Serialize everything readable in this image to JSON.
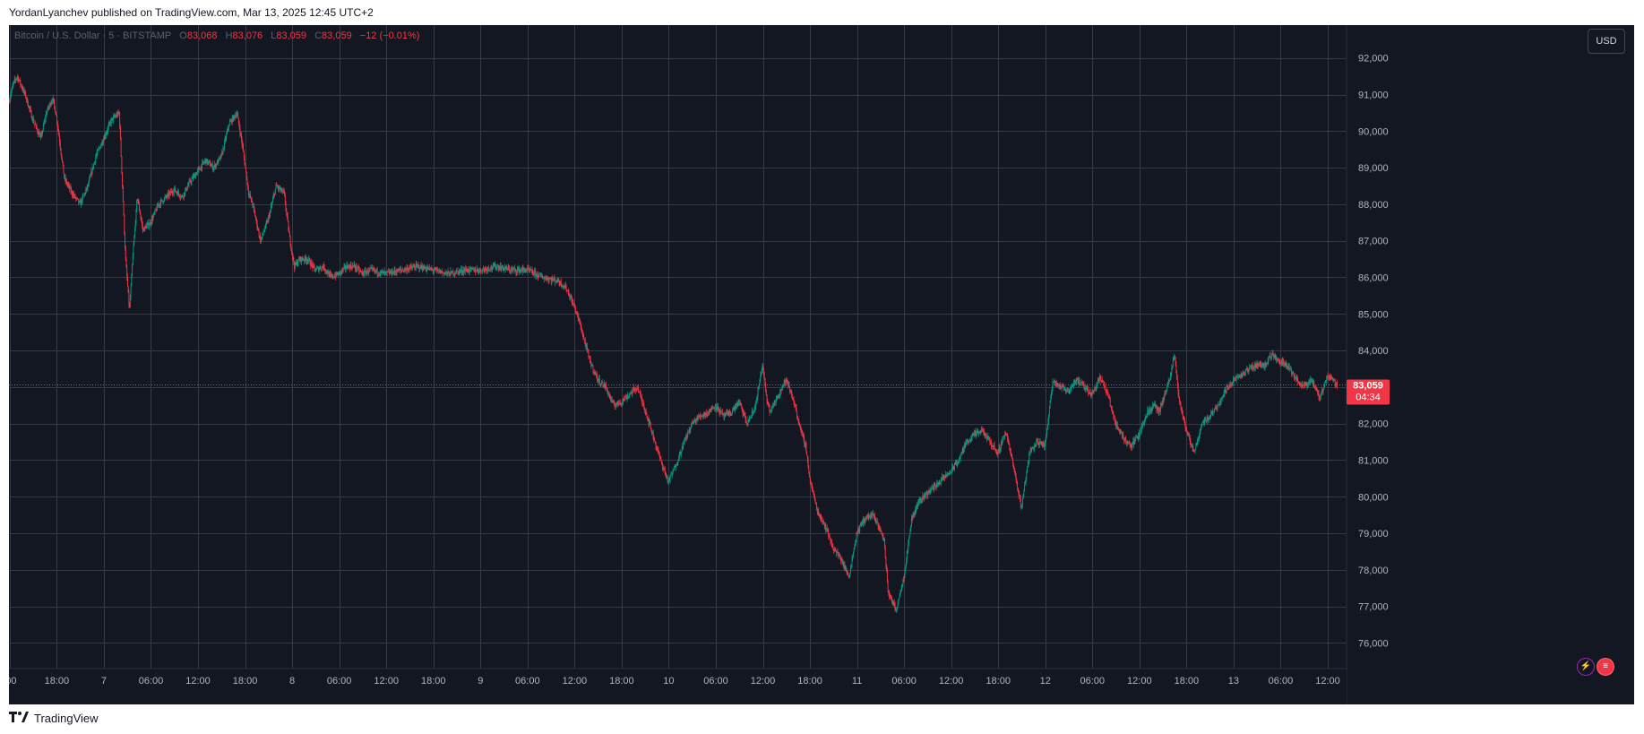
{
  "header": {
    "published_line": "YordanLyanchev published on TradingView.com, Mar 13, 2025 12:45 UTC+2"
  },
  "legend": {
    "symbol": "Bitcoin / U.S. Dollar · 5 · BITSTAMP",
    "o_label": "O",
    "o_value": "83,068",
    "h_label": "H",
    "h_value": "83,076",
    "l_label": "L",
    "l_value": "83,059",
    "c_label": "C",
    "c_value": "83,059",
    "change": "−12 (−0.01%)"
  },
  "toolbar": {
    "currency_button": "USD"
  },
  "price_tag": {
    "price": "83,059",
    "countdown": "04:34"
  },
  "footer": {
    "brand": "TradingView"
  },
  "colors": {
    "background": "#131722",
    "grid": "#363a45",
    "up": "#089981",
    "down": "#f23645",
    "axis_text": "#b2b5be"
  },
  "chart_data": {
    "type": "candlestick",
    "title": "Bitcoin / U.S. Dollar · 5 · BITSTAMP",
    "ylabel": "USD",
    "ylim": [
      75300,
      92900
    ],
    "y_ticks": [
      76000,
      77000,
      78000,
      79000,
      80000,
      81000,
      82000,
      83000,
      84000,
      85000,
      86000,
      87000,
      88000,
      89000,
      90000,
      91000,
      92000
    ],
    "y_tick_labels": [
      "76,000",
      "77,000",
      "78,000",
      "79,000",
      "80,000",
      "81,000",
      "82,000",
      "83,000",
      "84,000",
      "85,000",
      "86,000",
      "87,000",
      "88,000",
      "89,000",
      "90,000",
      "91,000",
      "92,000"
    ],
    "x_tick_labels": [
      ":00",
      "18:00",
      "7",
      "06:00",
      "12:00",
      "18:00",
      "8",
      "06:00",
      "12:00",
      "18:00",
      "9",
      "06:00",
      "12:00",
      "18:00",
      "10",
      "06:00",
      "12:00",
      "18:00",
      "11",
      "06:00",
      "12:00",
      "18:00",
      "12",
      "06:00",
      "12:00",
      "18:00",
      "13",
      "06:00",
      "12:00"
    ],
    "x_tick_hours": [
      12,
      18,
      24,
      30,
      36,
      42,
      48,
      54,
      60,
      66,
      72,
      78,
      84,
      90,
      96,
      102,
      108,
      114,
      120,
      126,
      132,
      138,
      144,
      150,
      156,
      162,
      168,
      174,
      180
    ],
    "x_range_hours": [
      11.9,
      182.4
    ],
    "last_price": 83059,
    "series": [
      {
        "price_path_hours": [
          11.9,
          12.5,
          13,
          14,
          15,
          16,
          16.7,
          17.5,
          18,
          19,
          20,
          21,
          22,
          23,
          24,
          25,
          26,
          26.8,
          27.3,
          27.8,
          28.3,
          29,
          30,
          31,
          32,
          33,
          34,
          35,
          36,
          37,
          38,
          39,
          40,
          41,
          41.7,
          42.5,
          43,
          44,
          45,
          46,
          47,
          47.7,
          48.3,
          49,
          50,
          51,
          52,
          53,
          54,
          55,
          56,
          57,
          58,
          60,
          62,
          64,
          66,
          68,
          70,
          72,
          74,
          76,
          78,
          80,
          82,
          83,
          84,
          84.5,
          85,
          86,
          87,
          88,
          89,
          90,
          91,
          92,
          93,
          94,
          95,
          96,
          97,
          98,
          99,
          100,
          101,
          102,
          103,
          104,
          105,
          106,
          107,
          108,
          108.5,
          109,
          110,
          111,
          112,
          113,
          113.5,
          114,
          115,
          116,
          117,
          118,
          119,
          120,
          121,
          122,
          122.8,
          123.5,
          124,
          125,
          126,
          127,
          128,
          129,
          130,
          131,
          132,
          133,
          134,
          135,
          136,
          137,
          138,
          139,
          140,
          141,
          142,
          143,
          144,
          145,
          146,
          147,
          148,
          149,
          150,
          151,
          152,
          153,
          154,
          155,
          156,
          157,
          158,
          158.5,
          159,
          160,
          160.5,
          161,
          162,
          163,
          164,
          165,
          166,
          167,
          168,
          169,
          170,
          171,
          172,
          173,
          174,
          175,
          176,
          177,
          178,
          179,
          180,
          180.7,
          181.3,
          181.8,
          182.4
        ],
        "price_path_values": [
          90800,
          91300,
          91500,
          91000,
          90300,
          89800,
          90500,
          90900,
          90400,
          88700,
          88300,
          88000,
          88500,
          89300,
          89800,
          90300,
          90500,
          86500,
          85100,
          86800,
          88200,
          87300,
          87500,
          88000,
          88200,
          88400,
          88200,
          88600,
          88900,
          89200,
          89000,
          89300,
          90200,
          90500,
          89600,
          88300,
          88000,
          87000,
          87600,
          88500,
          88300,
          87100,
          86300,
          86500,
          86500,
          86200,
          86300,
          86000,
          86100,
          86300,
          86300,
          86100,
          86200,
          86100,
          86200,
          86300,
          86200,
          86100,
          86200,
          86200,
          86300,
          86200,
          86200,
          86000,
          85900,
          85700,
          85200,
          84900,
          84500,
          83700,
          83200,
          83000,
          82500,
          82600,
          82800,
          83000,
          82400,
          81700,
          81000,
          80400,
          80900,
          81500,
          82000,
          82200,
          82300,
          82500,
          82200,
          82300,
          82600,
          82000,
          82400,
          83600,
          82700,
          82300,
          82800,
          83200,
          82600,
          81700,
          81400,
          80500,
          79600,
          79200,
          78600,
          78300,
          77800,
          79000,
          79400,
          79500,
          79200,
          78800,
          77400,
          76900,
          77800,
          79400,
          79900,
          80100,
          80300,
          80500,
          80700,
          81000,
          81500,
          81700,
          81800,
          81500,
          81200,
          81800,
          80800,
          79700,
          81200,
          81500,
          81400,
          83200,
          83000,
          82900,
          83200,
          83000,
          82800,
          83300,
          82800,
          82000,
          81600,
          81400,
          81700,
          82300,
          82500,
          82300,
          82600,
          83300,
          83900,
          82800,
          81800,
          81200,
          82000,
          82200,
          82500,
          82900,
          83200,
          83300,
          83500,
          83600,
          83600,
          83900,
          83700,
          83600,
          83200,
          83000,
          83200,
          82700,
          83300,
          83200,
          83059
        ]
      }
    ]
  }
}
